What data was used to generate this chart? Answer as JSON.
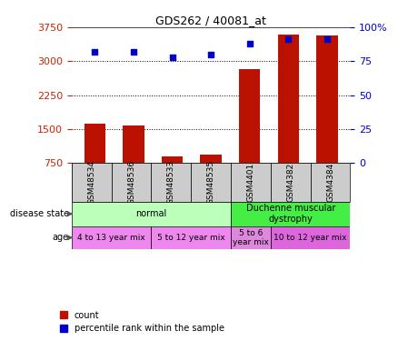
{
  "title": "GDS262 / 40081_at",
  "samples": [
    "GSM48534",
    "GSM48536",
    "GSM48533",
    "GSM48535",
    "GSM4401",
    "GSM4382",
    "GSM4384"
  ],
  "counts": [
    1620,
    1580,
    890,
    940,
    2820,
    3580,
    3560
  ],
  "percentiles": [
    82,
    82,
    78,
    80,
    88,
    91,
    91
  ],
  "ylim_left": [
    750,
    3750
  ],
  "ylim_right": [
    0,
    100
  ],
  "yticks_left": [
    750,
    1500,
    2250,
    3000,
    3750
  ],
  "yticks_right": [
    0,
    25,
    50,
    75,
    100
  ],
  "bar_color": "#bb1100",
  "scatter_color": "#0000cc",
  "disease_state_groups": [
    {
      "label": "normal",
      "start": 0,
      "end": 4,
      "color": "#bbffbb"
    },
    {
      "label": "Duchenne muscular\ndystrophy",
      "start": 4,
      "end": 7,
      "color": "#44ee44"
    }
  ],
  "age_groups": [
    {
      "label": "4 to 13 year mix",
      "start": 0,
      "end": 2,
      "color": "#ee88ee"
    },
    {
      "label": "5 to 12 year mix",
      "start": 2,
      "end": 4,
      "color": "#ee88ee"
    },
    {
      "label": "5 to 6\nyear mix",
      "start": 4,
      "end": 5,
      "color": "#dd88dd"
    },
    {
      "label": "10 to 12 year mix",
      "start": 5,
      "end": 7,
      "color": "#dd66dd"
    }
  ],
  "left_tick_color": "#cc2200",
  "right_tick_color": "#0000cc",
  "grid_color": "#000000",
  "sample_box_color": "#cccccc",
  "legend_labels": [
    "count",
    "percentile rank within the sample"
  ],
  "figsize": [
    4.38,
    3.75
  ],
  "dpi": 100
}
